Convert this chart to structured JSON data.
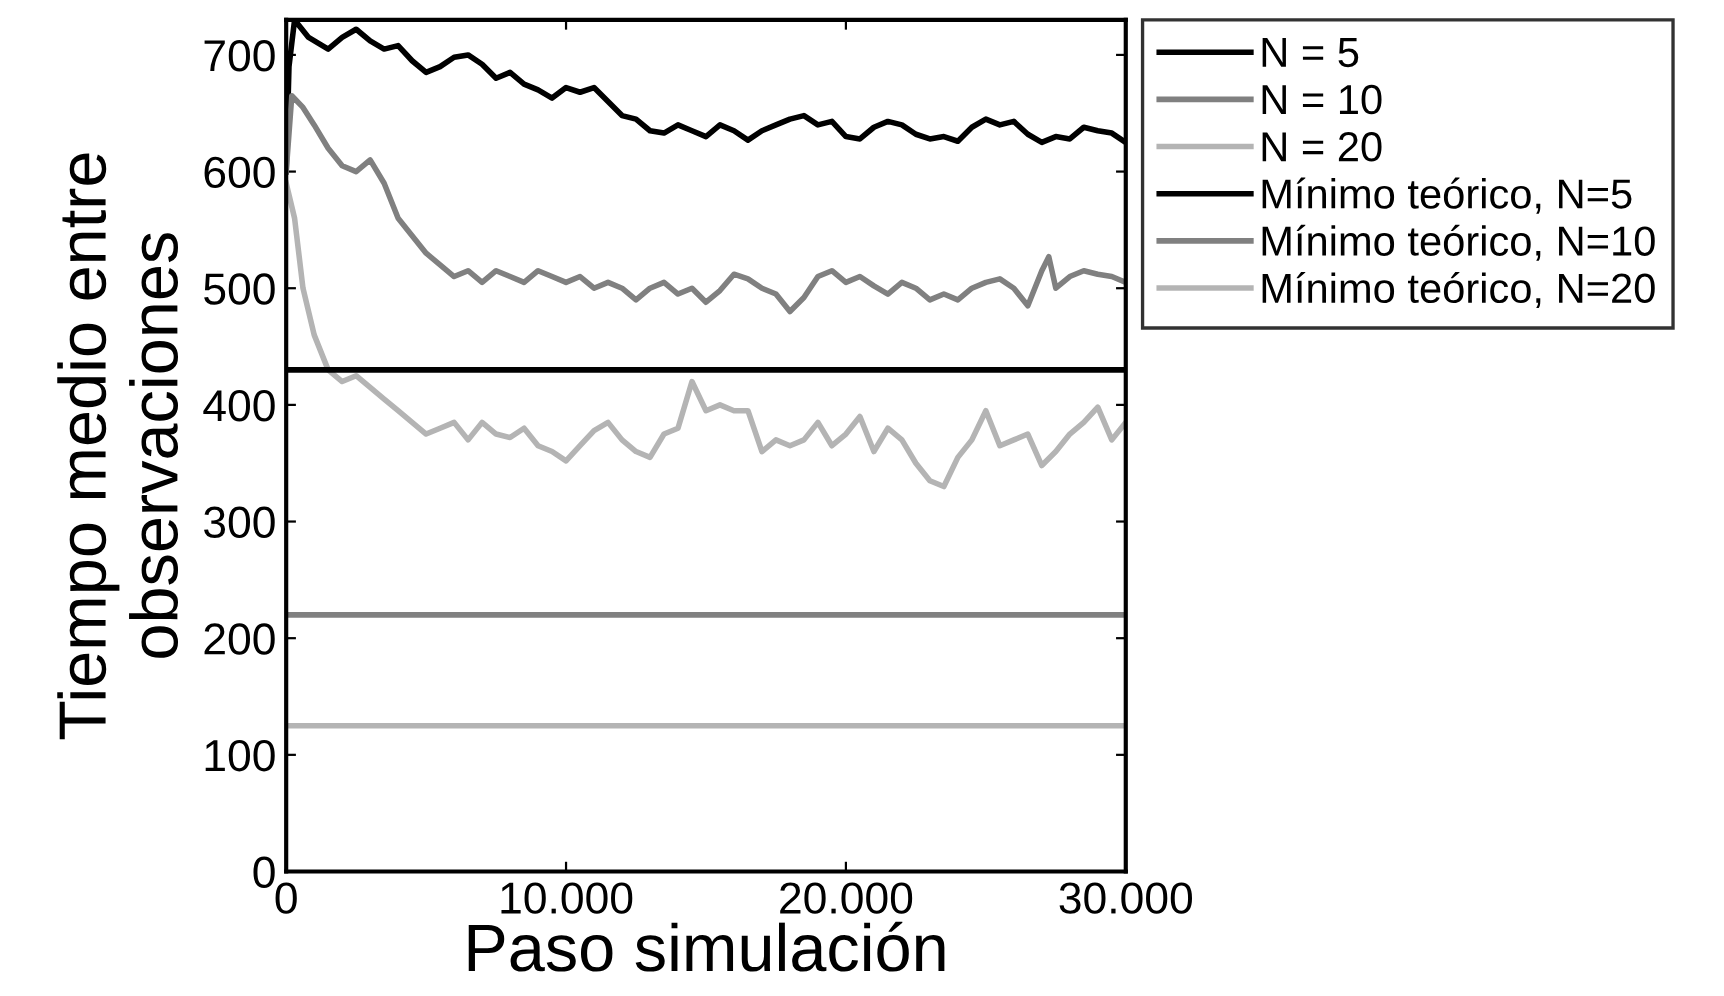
{
  "chart_data": {
    "type": "line",
    "xlabel": "Paso simulación",
    "ylabel": "Tiempo medio entre\nobservaciones",
    "xlim": [
      0,
      30000
    ],
    "xticks": [
      0,
      {
        "value": 10000,
        "label": "10.000"
      },
      {
        "value": 20000,
        "label": "20.000"
      },
      {
        "value": 30000,
        "label": "30.000"
      }
    ],
    "ylim": [
      0,
      730
    ],
    "yticks": [
      0,
      100,
      200,
      300,
      400,
      500,
      600,
      700
    ],
    "grid": false,
    "legend": "top right",
    "line_style": "solid",
    "marker": "none",
    "series": [
      {
        "name": "N = 5",
        "color": "#000000",
        "x": [
          0,
          100,
          300,
          800,
          1500,
          2000,
          2500,
          3000,
          3500,
          4000,
          4500,
          5000,
          5500,
          6000,
          6500,
          7000,
          7500,
          8000,
          8500,
          9000,
          9500,
          10000,
          10500,
          11000,
          11500,
          12000,
          12500,
          13000,
          13500,
          14000,
          14500,
          15000,
          15500,
          16000,
          16500,
          17000,
          17500,
          18000,
          18500,
          19000,
          19500,
          20000,
          20500,
          21000,
          21500,
          22000,
          22500,
          23000,
          23500,
          24000,
          24500,
          25000,
          25500,
          26000,
          26500,
          27000,
          27500,
          28000,
          28500,
          29000,
          29500,
          30000
        ],
        "values": [
          600,
          690,
          730,
          715,
          705,
          715,
          722,
          712,
          705,
          708,
          695,
          685,
          690,
          698,
          700,
          692,
          680,
          685,
          675,
          670,
          663,
          672,
          668,
          672,
          660,
          648,
          645,
          635,
          633,
          640,
          635,
          630,
          640,
          635,
          627,
          635,
          640,
          645,
          648,
          640,
          643,
          630,
          628,
          638,
          643,
          640,
          632,
          628,
          630,
          626,
          638,
          645,
          640,
          643,
          632,
          625,
          630,
          628,
          638,
          635,
          633,
          625
        ]
      },
      {
        "name": "N = 10",
        "color": "#808080",
        "x": [
          0,
          200,
          600,
          1000,
          1500,
          2000,
          2500,
          3000,
          3500,
          4000,
          4500,
          5000,
          5500,
          6000,
          6500,
          7000,
          7500,
          8000,
          8500,
          9000,
          9500,
          10000,
          10500,
          11000,
          11500,
          12000,
          12500,
          13000,
          13500,
          14000,
          14500,
          15000,
          15500,
          16000,
          16500,
          17000,
          17500,
          18000,
          18500,
          19000,
          19500,
          20000,
          20500,
          21000,
          21500,
          22000,
          22500,
          23000,
          23500,
          24000,
          24500,
          25000,
          25500,
          26000,
          26500,
          27000,
          27250,
          27500,
          28000,
          28500,
          29000,
          29500,
          30000
        ],
        "values": [
          600,
          665,
          655,
          640,
          620,
          605,
          600,
          610,
          590,
          560,
          545,
          530,
          520,
          510,
          515,
          505,
          515,
          510,
          505,
          515,
          510,
          505,
          510,
          500,
          505,
          500,
          490,
          500,
          505,
          495,
          500,
          488,
          498,
          512,
          508,
          500,
          495,
          480,
          492,
          510,
          515,
          505,
          510,
          502,
          495,
          505,
          500,
          490,
          495,
          490,
          500,
          505,
          508,
          500,
          485,
          515,
          527,
          500,
          510,
          515,
          512,
          510,
          505
        ]
      },
      {
        "name": "N = 20",
        "color": "#b4b4b4",
        "x": [
          0,
          300,
          600,
          1000,
          1500,
          2000,
          2500,
          3000,
          3500,
          4000,
          4500,
          5000,
          5500,
          6000,
          6500,
          7000,
          7500,
          8000,
          8500,
          9000,
          9500,
          10000,
          10500,
          11000,
          11500,
          12000,
          12500,
          13000,
          13500,
          14000,
          14500,
          15000,
          15500,
          16000,
          16500,
          17000,
          17500,
          18000,
          18500,
          19000,
          19500,
          20000,
          20500,
          21000,
          21500,
          22000,
          22500,
          23000,
          23500,
          24000,
          24500,
          25000,
          25500,
          26000,
          26500,
          27000,
          27500,
          28000,
          28500,
          29000,
          29500,
          30000
        ],
        "values": [
          590,
          560,
          500,
          460,
          430,
          420,
          425,
          415,
          405,
          395,
          385,
          375,
          380,
          385,
          370,
          385,
          375,
          372,
          380,
          365,
          360,
          352,
          365,
          378,
          385,
          370,
          360,
          355,
          375,
          380,
          420,
          395,
          400,
          395,
          395,
          360,
          370,
          365,
          370,
          385,
          365,
          375,
          390,
          360,
          380,
          370,
          350,
          335,
          330,
          355,
          370,
          395,
          365,
          370,
          375,
          348,
          360,
          375,
          385,
          398,
          370,
          385
        ]
      },
      {
        "name": "Mínimo teórico, N=5",
        "color": "#000000",
        "x": [
          0,
          30000
        ],
        "values": [
          430,
          430
        ]
      },
      {
        "name": "Mínimo teórico, N=10",
        "color": "#808080",
        "x": [
          0,
          30000
        ],
        "values": [
          220,
          220
        ]
      },
      {
        "name": "Mínimo teórico, N=20",
        "color": "#b4b4b4",
        "x": [
          0,
          30000
        ],
        "values": [
          125,
          125
        ]
      }
    ]
  }
}
